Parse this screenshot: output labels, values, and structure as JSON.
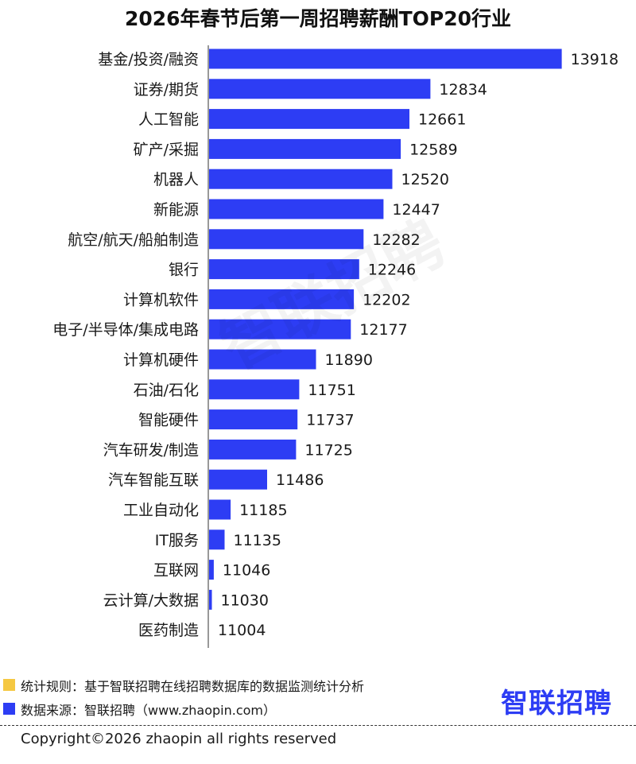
{
  "chart_data": {
    "type": "bar",
    "orientation": "horizontal",
    "title": "2026年春节后第一周招聘薪酬TOP20行业",
    "categories": [
      "基金/投资/融资",
      "证券/期货",
      "人工智能",
      "矿产/采掘",
      "机器人",
      "新能源",
      "航空/航天/船舶制造",
      "银行",
      "计算机软件",
      "电子/半导体/集成电路",
      "计算机硬件",
      "石油/石化",
      "智能硬件",
      "汽车研发/制造",
      "汽车智能互联",
      "工业自动化",
      "IT服务",
      "互联网",
      "云计算/大数据",
      "医药制造"
    ],
    "values": [
      13918,
      12834,
      12661,
      12589,
      12520,
      12447,
      12282,
      12246,
      12202,
      12177,
      11890,
      11751,
      11737,
      11725,
      11486,
      11185,
      11135,
      11046,
      11030,
      11004
    ],
    "bar_color": "#2d3df4",
    "grid": false,
    "data_labels": true
  },
  "watermark": "智联招聘",
  "legend": {
    "rule_color": "#f5c842",
    "rule_text": "统计规则：基于智联招聘在线招聘数据库的数据监测统计分析",
    "source_color": "#2d3df4",
    "source_text": "数据来源：智联招聘（www.zhaopin.com）"
  },
  "logo_text": "智联招聘",
  "copyright": "Copyright©2026 zhaopin all rights reserved"
}
